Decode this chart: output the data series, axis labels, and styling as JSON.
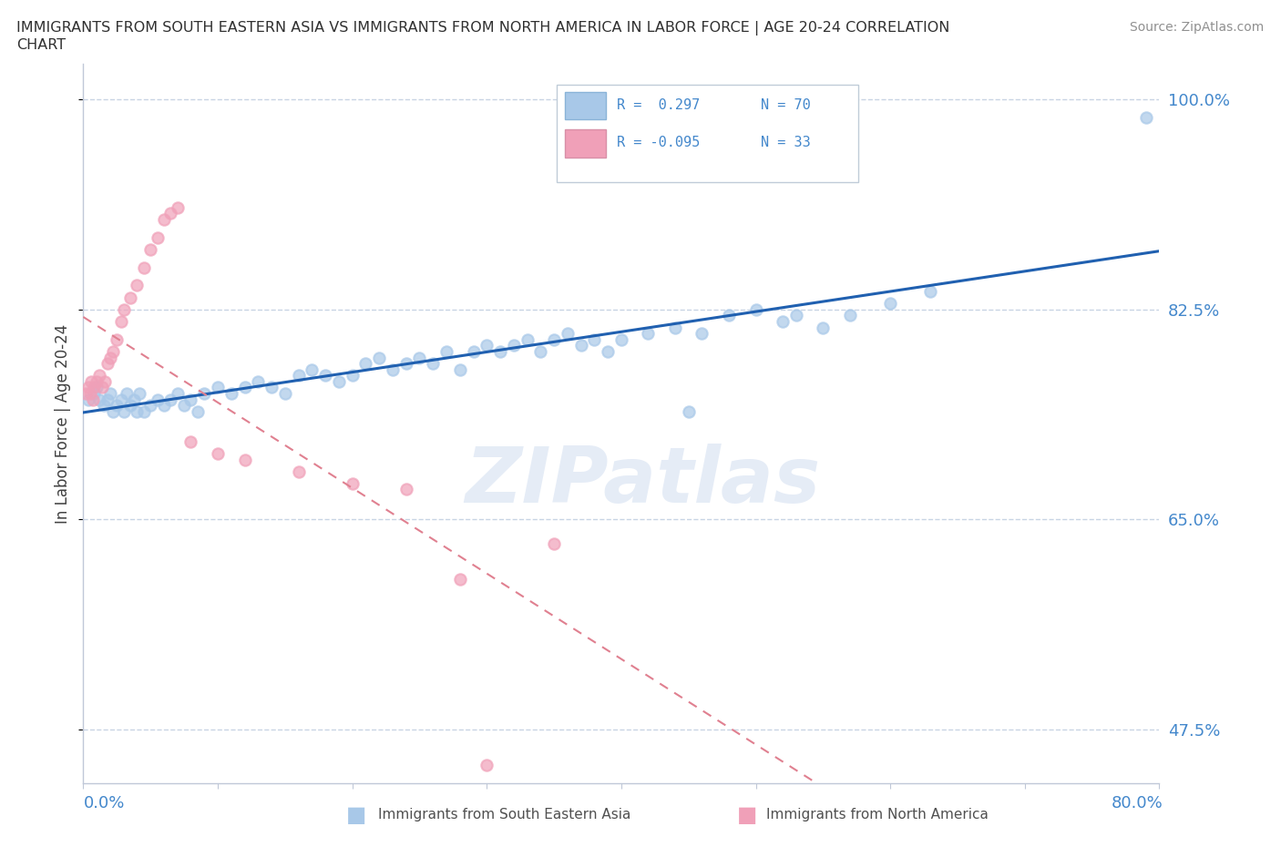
{
  "title": "IMMIGRANTS FROM SOUTH EASTERN ASIA VS IMMIGRANTS FROM NORTH AMERICA IN LABOR FORCE | AGE 20-24 CORRELATION\nCHART",
  "source_text": "Source: ZipAtlas.com",
  "xlim": [
    0.0,
    80.0
  ],
  "ylim": [
    43.0,
    103.0
  ],
  "ylabel_ticks": [
    47.5,
    65.0,
    82.5,
    100.0
  ],
  "legend_blue_r": "R =  0.297",
  "legend_blue_n": "N = 70",
  "legend_pink_r": "R = -0.095",
  "legend_pink_n": "N = 33",
  "blue_color": "#a8c8e8",
  "pink_color": "#f0a0b8",
  "trend_blue_color": "#2060b0",
  "trend_pink_color": "#e08090",
  "blue_scatter": [
    [
      0.4,
      75.0
    ],
    [
      0.8,
      75.5
    ],
    [
      1.0,
      76.0
    ],
    [
      1.2,
      75.0
    ],
    [
      1.5,
      74.5
    ],
    [
      1.8,
      75.0
    ],
    [
      2.0,
      75.5
    ],
    [
      2.2,
      74.0
    ],
    [
      2.5,
      74.5
    ],
    [
      2.8,
      75.0
    ],
    [
      3.0,
      74.0
    ],
    [
      3.2,
      75.5
    ],
    [
      3.5,
      74.5
    ],
    [
      3.8,
      75.0
    ],
    [
      4.0,
      74.0
    ],
    [
      4.2,
      75.5
    ],
    [
      4.5,
      74.0
    ],
    [
      5.0,
      74.5
    ],
    [
      5.5,
      75.0
    ],
    [
      6.0,
      74.5
    ],
    [
      6.5,
      75.0
    ],
    [
      7.0,
      75.5
    ],
    [
      7.5,
      74.5
    ],
    [
      8.0,
      75.0
    ],
    [
      8.5,
      74.0
    ],
    [
      9.0,
      75.5
    ],
    [
      10.0,
      76.0
    ],
    [
      11.0,
      75.5
    ],
    [
      12.0,
      76.0
    ],
    [
      13.0,
      76.5
    ],
    [
      14.0,
      76.0
    ],
    [
      15.0,
      75.5
    ],
    [
      16.0,
      77.0
    ],
    [
      17.0,
      77.5
    ],
    [
      18.0,
      77.0
    ],
    [
      19.0,
      76.5
    ],
    [
      20.0,
      77.0
    ],
    [
      21.0,
      78.0
    ],
    [
      22.0,
      78.5
    ],
    [
      23.0,
      77.5
    ],
    [
      24.0,
      78.0
    ],
    [
      25.0,
      78.5
    ],
    [
      26.0,
      78.0
    ],
    [
      27.0,
      79.0
    ],
    [
      28.0,
      77.5
    ],
    [
      29.0,
      79.0
    ],
    [
      30.0,
      79.5
    ],
    [
      31.0,
      79.0
    ],
    [
      32.0,
      79.5
    ],
    [
      33.0,
      80.0
    ],
    [
      34.0,
      79.0
    ],
    [
      35.0,
      80.0
    ],
    [
      36.0,
      80.5
    ],
    [
      37.0,
      79.5
    ],
    [
      38.0,
      80.0
    ],
    [
      39.0,
      79.0
    ],
    [
      40.0,
      80.0
    ],
    [
      42.0,
      80.5
    ],
    [
      44.0,
      81.0
    ],
    [
      45.0,
      74.0
    ],
    [
      46.0,
      80.5
    ],
    [
      48.0,
      82.0
    ],
    [
      50.0,
      82.5
    ],
    [
      52.0,
      81.5
    ],
    [
      53.0,
      82.0
    ],
    [
      55.0,
      81.0
    ],
    [
      57.0,
      82.0
    ],
    [
      60.0,
      83.0
    ],
    [
      63.0,
      84.0
    ],
    [
      79.0,
      98.5
    ]
  ],
  "pink_scatter": [
    [
      0.2,
      75.5
    ],
    [
      0.4,
      76.0
    ],
    [
      0.5,
      75.5
    ],
    [
      0.6,
      76.5
    ],
    [
      0.7,
      75.0
    ],
    [
      0.8,
      76.0
    ],
    [
      1.0,
      76.5
    ],
    [
      1.2,
      77.0
    ],
    [
      1.4,
      76.0
    ],
    [
      1.6,
      76.5
    ],
    [
      1.8,
      78.0
    ],
    [
      2.0,
      78.5
    ],
    [
      2.2,
      79.0
    ],
    [
      2.5,
      80.0
    ],
    [
      2.8,
      81.5
    ],
    [
      3.0,
      82.5
    ],
    [
      3.5,
      83.5
    ],
    [
      4.0,
      84.5
    ],
    [
      4.5,
      86.0
    ],
    [
      5.0,
      87.5
    ],
    [
      5.5,
      88.5
    ],
    [
      6.0,
      90.0
    ],
    [
      6.5,
      90.5
    ],
    [
      7.0,
      91.0
    ],
    [
      8.0,
      71.5
    ],
    [
      10.0,
      70.5
    ],
    [
      12.0,
      70.0
    ],
    [
      16.0,
      69.0
    ],
    [
      20.0,
      68.0
    ],
    [
      24.0,
      67.5
    ],
    [
      28.0,
      60.0
    ],
    [
      30.0,
      44.5
    ],
    [
      35.0,
      63.0
    ]
  ],
  "watermark_text": "ZIPatlas",
  "ylabel": "In Labor Force | Age 20-24",
  "background_color": "#ffffff",
  "grid_color": "#c8d4e4"
}
